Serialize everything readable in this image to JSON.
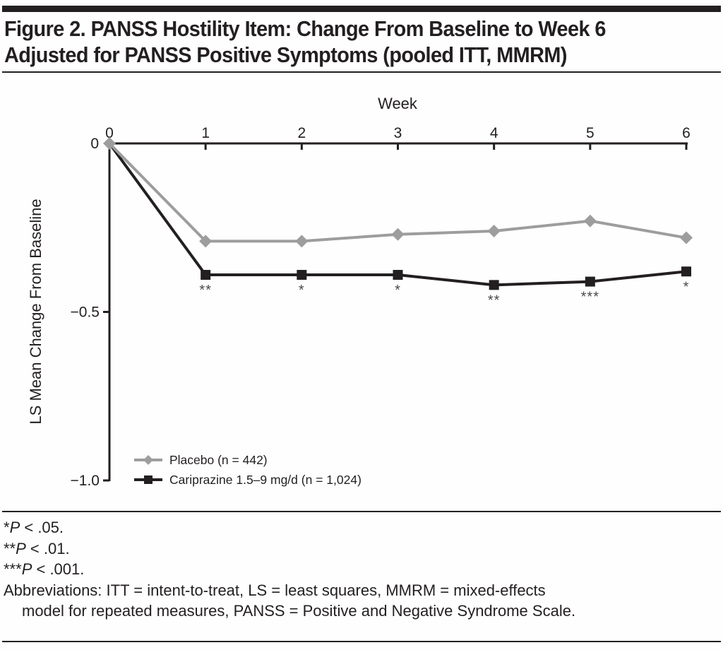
{
  "figure": {
    "title_line1": "Figure 2. PANSS Hostility Item: Change From Baseline to Week 6",
    "title_line2": "Adjusted for PANSS Positive Symptoms (pooled ITT, MMRM)"
  },
  "chart_data": {
    "type": "line",
    "title": "PANSS Hostility Item: Change From Baseline to Week 6 Adjusted for PANSS Positive Symptoms (pooled ITT, MMRM)",
    "xlabel": "Week",
    "ylabel": "LS Mean Change From Baseline",
    "x": [
      0,
      1,
      2,
      3,
      4,
      5,
      6
    ],
    "x_tick_labels": [
      "0",
      "1",
      "2",
      "3",
      "4",
      "5",
      "6"
    ],
    "x_axis_position": "top",
    "xlim": [
      0,
      6
    ],
    "ylim": [
      -1.0,
      0
    ],
    "y_ticks": [
      0,
      -0.5,
      -1.0
    ],
    "y_tick_labels": [
      "0",
      "−0.5",
      "−1.0"
    ],
    "grid": false,
    "legend_position": "bottom-left",
    "series": [
      {
        "name": "Placebo (n = 442)",
        "color": "#9d9d9d",
        "marker": "diamond",
        "values": [
          0,
          -0.29,
          -0.29,
          -0.27,
          -0.26,
          -0.23,
          -0.28
        ]
      },
      {
        "name": "Cariprazine 1.5–9 mg/d (n = 1,024)",
        "color": "#231f20",
        "marker": "square",
        "values": [
          0,
          -0.39,
          -0.39,
          -0.39,
          -0.42,
          -0.41,
          -0.38
        ]
      }
    ],
    "annotations": [
      {
        "series": 1,
        "x": 1,
        "text": "**"
      },
      {
        "series": 1,
        "x": 2,
        "text": "*"
      },
      {
        "series": 1,
        "x": 3,
        "text": "*"
      },
      {
        "series": 1,
        "x": 4,
        "text": "**"
      },
      {
        "series": 1,
        "x": 5,
        "text": "***"
      },
      {
        "series": 1,
        "x": 6,
        "text": "*"
      }
    ]
  },
  "footnotes": {
    "p05_stars": "*",
    "p05_p": "P",
    "p05_rest": " < .05.",
    "p01_stars": "**",
    "p01_p": "P",
    "p01_rest": " < .01.",
    "p001_stars": "***",
    "p001_p": "P",
    "p001_rest": " < .001.",
    "abbrev_line1": "Abbreviations: ITT = intent-to-treat, LS = least squares, MMRM = mixed-effects",
    "abbrev_line2": "model for repeated measures, PANSS = Positive and Negative Syndrome Scale."
  }
}
